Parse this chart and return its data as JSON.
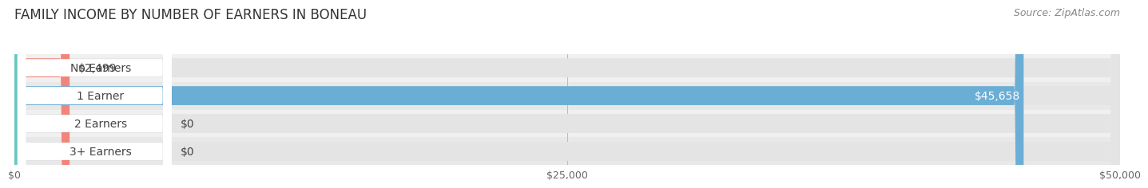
{
  "title": "FAMILY INCOME BY NUMBER OF EARNERS IN BONEAU",
  "source": "Source: ZipAtlas.com",
  "categories": [
    "No Earners",
    "1 Earner",
    "2 Earners",
    "3+ Earners"
  ],
  "values": [
    2499,
    45658,
    0,
    0
  ],
  "bar_colors": [
    "#f0857a",
    "#6aaed6",
    "#b8a0cc",
    "#68c8c0"
  ],
  "row_bg_colors": [
    "#f0f0f0",
    "#e8e8e8",
    "#f0f0f0",
    "#e8e8e8"
  ],
  "value_labels": [
    "$2,499",
    "$45,658",
    "$0",
    "$0"
  ],
  "xlim_max": 50000,
  "xticks": [
    0,
    25000,
    50000
  ],
  "xtick_labels": [
    "$0",
    "$25,000",
    "$50,000"
  ],
  "title_fontsize": 12,
  "source_fontsize": 9,
  "bar_label_fontsize": 10,
  "value_fontsize": 10,
  "bg_bar_color": "#e4e4e4",
  "label_pill_color": "white"
}
